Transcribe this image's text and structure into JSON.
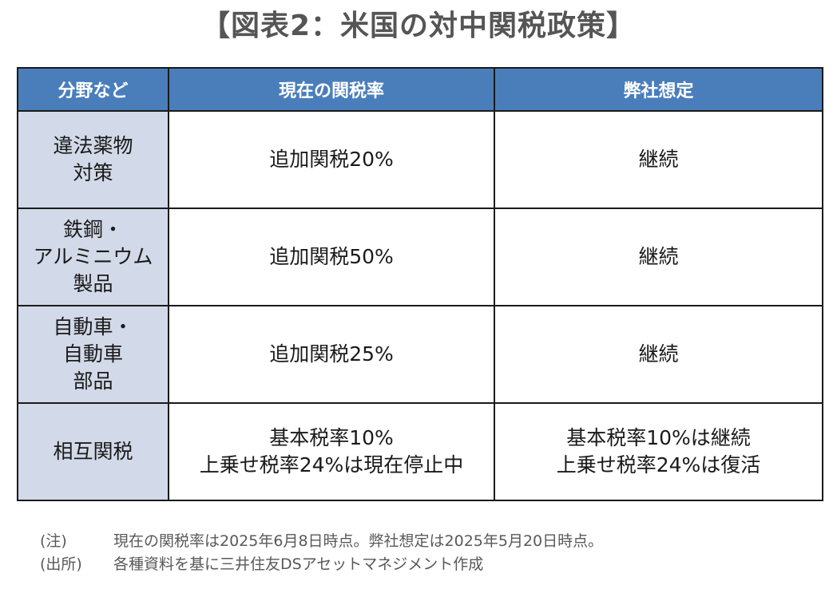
{
  "title": "【図表2：米国の対中関税政策】",
  "table": {
    "headers": [
      "分野など",
      "現在の関税率",
      "弊社想定"
    ],
    "rows": [
      {
        "field": [
          "違法薬物",
          "対策"
        ],
        "current": [
          "追加関税20%"
        ],
        "forecast": [
          "継続"
        ]
      },
      {
        "field": [
          "鉄鋼・",
          "アルミニウム",
          "製品"
        ],
        "current": [
          "追加関税50%"
        ],
        "forecast": [
          "継続"
        ]
      },
      {
        "field": [
          "自動車・",
          "自動車",
          "部品"
        ],
        "current": [
          "追加関税25%"
        ],
        "forecast": [
          "継続"
        ]
      },
      {
        "field": [
          "相互関税"
        ],
        "current": [
          "基本税率10%",
          "上乗せ税率24%は現在停止中"
        ],
        "forecast": [
          "基本税率10%は継続",
          "上乗せ税率24%は復活"
        ]
      }
    ]
  },
  "notes": [
    {
      "label": "(注)",
      "text": "現在の関税率は2025年6月8日時点。弊社想定は2025年5月20日時点。"
    },
    {
      "label": "(出所)",
      "text": "各種資料を基に三井住友DSアセットマネジメント作成"
    }
  ]
}
